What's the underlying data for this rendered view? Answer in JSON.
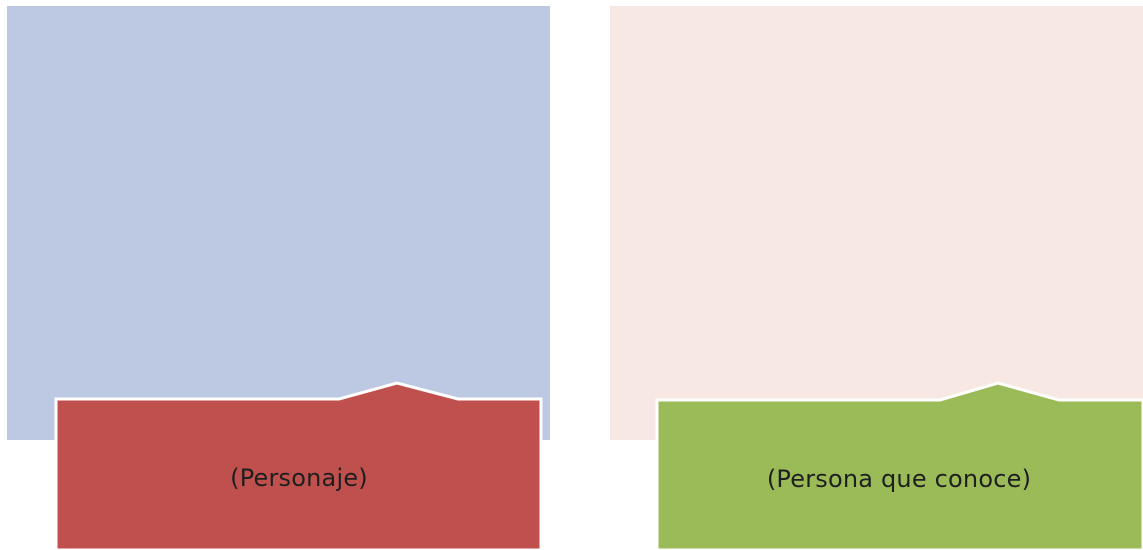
{
  "colors": {
    "left_panel": "#bdc8e3",
    "right_panel": "#f8e8e4",
    "left_callout": "#c0504d",
    "right_callout": "#9bbb59",
    "callout_border": "#ffffff",
    "label_text": "#1f1f1f"
  },
  "left_card": {
    "label": "(Personaje)"
  },
  "right_card": {
    "label": "(Persona que conoce)"
  }
}
